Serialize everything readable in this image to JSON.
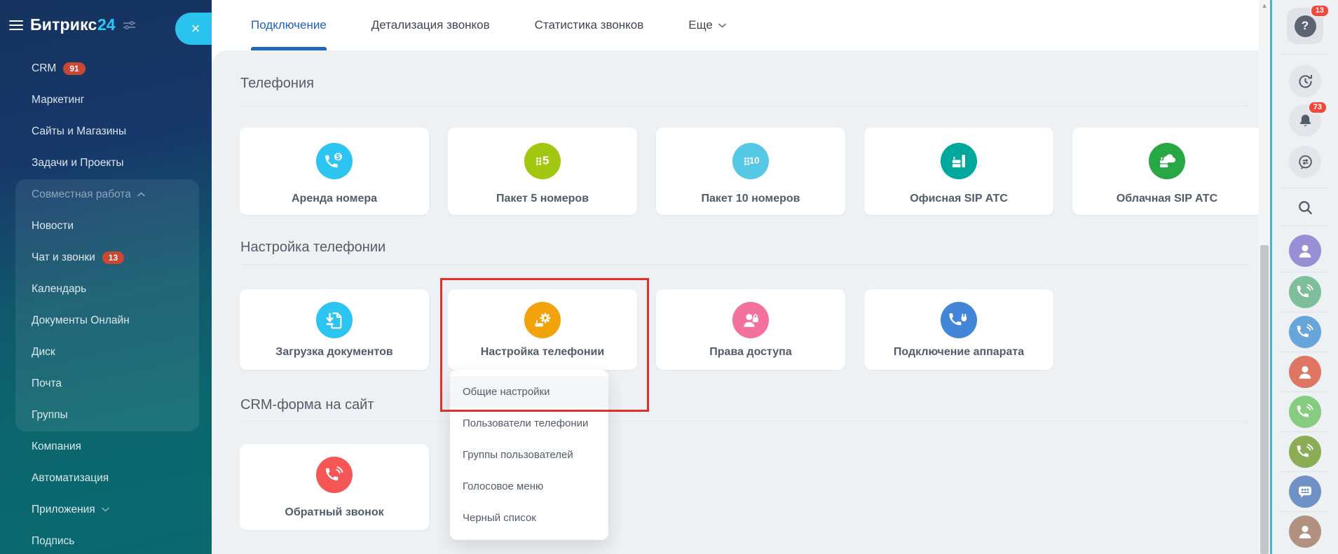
{
  "app_title": "Битрикс24 — Телефония",
  "colors": {
    "sidebar_top": "#16335f",
    "sidebar_bottom": "#09696f",
    "logo_suffix": "#2ec6f7",
    "close_button": "#29c3ee",
    "tab_active": "#1e63b8",
    "highlight_box": "#e43127",
    "badge_red": "#cb4732",
    "rightbar_badge": "#f3493c",
    "content_bg": "#eef1f4"
  },
  "sidebar": {
    "logo": {
      "brand": "Битрикс",
      "suffix": "24"
    },
    "items": [
      {
        "label": "CRM",
        "badge": "91"
      },
      {
        "label": "Маркетинг"
      },
      {
        "label": "Сайты и Магазины"
      },
      {
        "label": "Задачи и Проекты"
      },
      {
        "label": "Совместная работа",
        "chevron": "up",
        "dim": true
      },
      {
        "label": "Новости"
      },
      {
        "label": "Чат и звонки",
        "badge": "13"
      },
      {
        "label": "Календарь"
      },
      {
        "label": "Документы Онлайн"
      },
      {
        "label": "Диск"
      },
      {
        "label": "Почта"
      },
      {
        "label": "Группы"
      },
      {
        "label": "Компания"
      },
      {
        "label": "Автоматизация"
      },
      {
        "label": "Приложения",
        "chevron": "down"
      },
      {
        "label": "Подпись"
      }
    ]
  },
  "close_button": {
    "label": "×"
  },
  "tabs": [
    {
      "label": "Подключение",
      "active": true
    },
    {
      "label": "Детализация звонков"
    },
    {
      "label": "Статистика звонков"
    },
    {
      "label": "Еще",
      "chevron": true
    }
  ],
  "sections": [
    {
      "title": "Телефония",
      "cards": [
        {
          "label": "Аренда номера",
          "icon": "phone-dollar",
          "color": "#2cc4f0"
        },
        {
          "label": "Пакет 5 номеров",
          "icon": "keypad-5",
          "color": "#a2c711",
          "number": "5"
        },
        {
          "label": "Пакет 10 номеров",
          "icon": "keypad-10",
          "color": "#55c8e6",
          "number": "10"
        },
        {
          "label": "Офисная SIP АТС",
          "icon": "sip-office",
          "color": "#00a79b"
        },
        {
          "label": "Облачная SIP АТС",
          "icon": "sip-cloud",
          "color": "#28a745"
        }
      ]
    },
    {
      "title": "Настройка телефонии",
      "cards": [
        {
          "label": "Загрузка документов",
          "icon": "doc-download",
          "color": "#2cc4f0"
        },
        {
          "label": "Настройка телефонии",
          "icon": "phone-gear",
          "color": "#f2a30c",
          "highlighted": true
        },
        {
          "label": "Права доступа",
          "icon": "person-lock",
          "color": "#f4719c"
        },
        {
          "label": "Подключение аппарата",
          "icon": "phone-plug",
          "color": "#4286d9"
        }
      ]
    },
    {
      "title": "CRM-форма на сайт",
      "cards": [
        {
          "label": "Обратный звонок",
          "icon": "phone-callback",
          "color": "#f75656"
        }
      ]
    }
  ],
  "dropdown": {
    "items": [
      {
        "label": "Общие настройки",
        "highlighted": true
      },
      {
        "label": "Пользователи телефонии"
      },
      {
        "label": "Группы пользователей"
      },
      {
        "label": "Голосовое меню"
      },
      {
        "label": "Черный список"
      }
    ]
  },
  "rightbar": {
    "items": [
      {
        "icon": "help",
        "kind": "plate",
        "badge": "13",
        "glyph_text": "?"
      },
      {
        "icon": "timeman",
        "kind": "gray"
      },
      {
        "icon": "bell",
        "kind": "gray",
        "badge": "73"
      },
      {
        "icon": "messenger",
        "kind": "gray"
      },
      {
        "icon": "search",
        "kind": "bare"
      },
      {
        "icon": "person",
        "kind": "color",
        "bg": "#998fd5"
      },
      {
        "icon": "phone",
        "kind": "color",
        "bg": "#7fbe9b"
      },
      {
        "icon": "phone",
        "kind": "color",
        "bg": "#68a5da"
      },
      {
        "icon": "person",
        "kind": "color",
        "bg": "#de7663"
      },
      {
        "icon": "phone",
        "kind": "color",
        "bg": "#85cc80"
      },
      {
        "icon": "phone",
        "kind": "color",
        "bg": "#8cad55"
      },
      {
        "icon": "chat-group",
        "kind": "color",
        "bg": "#6e92c5"
      },
      {
        "icon": "person",
        "kind": "color",
        "bg": "#b29181"
      }
    ]
  }
}
